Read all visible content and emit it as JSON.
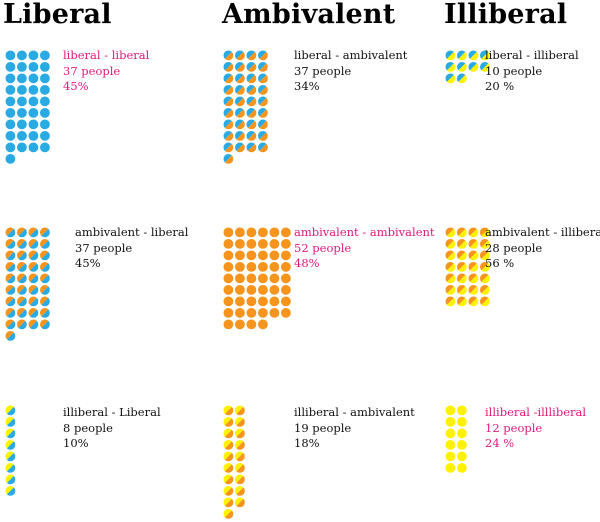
{
  "colors": {
    "liberal": "#29aae2",
    "ambivalent": "#f7941d",
    "illiberal": "#fff200",
    "text": "#111111",
    "highlight": "#e0197d"
  },
  "headers": [
    "Liberal",
    "Ambivalent",
    "Illiberal"
  ],
  "chart_data": {
    "type": "dot-matrix",
    "unit": "person",
    "columns": [
      "Liberal",
      "Ambivalent",
      "Illiberal"
    ],
    "cells": [
      {
        "id": "liberal-liberal",
        "name": "liberal - liberal",
        "count": 37,
        "count_text": "37 people",
        "percent": 45,
        "percent_text": "45%",
        "from": "liberal",
        "to": "liberal",
        "highlight": true
      },
      {
        "id": "liberal-ambivalent",
        "name": "liberal - ambivalent",
        "count": 37,
        "count_text": "37 people",
        "percent": 34,
        "percent_text": "34%",
        "from": "liberal",
        "to": "ambivalent",
        "highlight": false
      },
      {
        "id": "liberal-illiberal",
        "name": "liberal - illiberal",
        "count": 10,
        "count_text": "10 people",
        "percent": 20,
        "percent_text": "20 %",
        "from": "liberal",
        "to": "illiberal",
        "highlight": false
      },
      {
        "id": "ambivalent-liberal",
        "name": "ambivalent - liberal",
        "count": 37,
        "count_text": "37 people",
        "percent": 45,
        "percent_text": "45%",
        "from": "ambivalent",
        "to": "liberal",
        "highlight": false
      },
      {
        "id": "ambivalent-ambivalent",
        "name": "ambivalent - ambivalent",
        "count": 52,
        "count_text": "52 people",
        "percent": 48,
        "percent_text": "48%",
        "from": "ambivalent",
        "to": "ambivalent",
        "highlight": true
      },
      {
        "id": "ambivalent-illiberal",
        "name": "ambivalent - illiberal",
        "count": 28,
        "count_text": "28 people",
        "percent": 56,
        "percent_text": "56 %",
        "from": "ambivalent",
        "to": "illiberal",
        "highlight": false
      },
      {
        "id": "illiberal-liberal",
        "name": "illiberal - Liberal",
        "count": 8,
        "count_text": "8 people",
        "percent": 10,
        "percent_text": "10%",
        "from": "illiberal",
        "to": "liberal",
        "highlight": false
      },
      {
        "id": "illiberal-ambivalent",
        "name": "illiberal - ambivalent",
        "count": 19,
        "count_text": "19 people",
        "percent": 18,
        "percent_text": "18%",
        "from": "illiberal",
        "to": "ambivalent",
        "highlight": false
      },
      {
        "id": "illiberal-illiberal",
        "name": "illiberal -illliberal",
        "count": 12,
        "count_text": "12 people",
        "percent": 24,
        "percent_text": "24 %",
        "from": "illiberal",
        "to": "illiberal",
        "highlight": true
      }
    ]
  }
}
